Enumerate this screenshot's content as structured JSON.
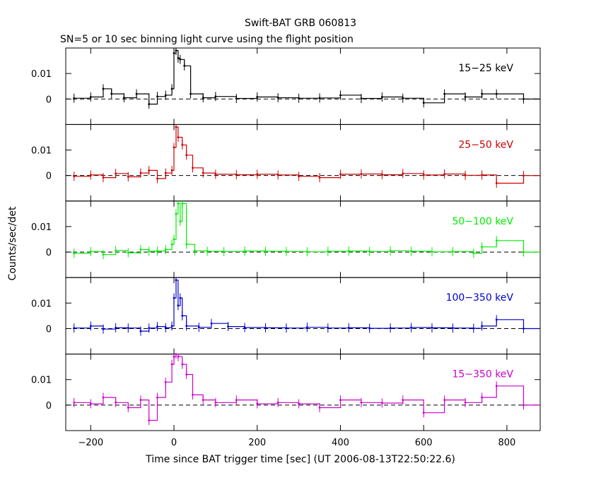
{
  "chart_data": {
    "type": "line",
    "title": "Swift-BAT GRB 060813",
    "subtitle": "SN=5 or 10 sec binning light curve using the flight position",
    "xlabel": "Time since BAT trigger time [sec] (UT 2006-08-13T22:50:22.6)",
    "ylabel": "Counts/sec/det",
    "xlim": [
      -260,
      880
    ],
    "x_ticks": [
      -200,
      0,
      200,
      400,
      600,
      800
    ],
    "x_tick_labels": [
      "−200",
      "0",
      "200",
      "400",
      "600",
      "800"
    ],
    "ylim": [
      -0.01,
      0.02
    ],
    "y_ticks": [
      0,
      0.01
    ],
    "y_tick_labels": [
      "0",
      "0.01"
    ],
    "zero_line": "dashed",
    "panels": [
      {
        "name": "15−25 keV",
        "color": "#000000",
        "series": [
          {
            "x": -240,
            "y": 0.0003
          },
          {
            "x": -200,
            "y": 0.0008
          },
          {
            "x": -170,
            "y": 0.004
          },
          {
            "x": -150,
            "y": 0.002
          },
          {
            "x": -120,
            "y": 0.0005
          },
          {
            "x": -90,
            "y": 0.002
          },
          {
            "x": -60,
            "y": -0.002
          },
          {
            "x": -40,
            "y": 0.001
          },
          {
            "x": -20,
            "y": 0.0015
          },
          {
            "x": -5,
            "y": 0.004
          },
          {
            "x": 0,
            "y": 0.018
          },
          {
            "x": 5,
            "y": 0.019
          },
          {
            "x": 10,
            "y": 0.016
          },
          {
            "x": 15,
            "y": 0.0155
          },
          {
            "x": 25,
            "y": 0.013
          },
          {
            "x": 40,
            "y": 0.002
          },
          {
            "x": 70,
            "y": 0.0005
          },
          {
            "x": 100,
            "y": 0.001
          },
          {
            "x": 150,
            "y": 0.0002
          },
          {
            "x": 200,
            "y": 0.0008
          },
          {
            "x": 250,
            "y": 0.0005
          },
          {
            "x": 300,
            "y": 0.0003
          },
          {
            "x": 350,
            "y": 0.0004
          },
          {
            "x": 400,
            "y": 0.0015
          },
          {
            "x": 450,
            "y": 0.0002
          },
          {
            "x": 500,
            "y": 0.0008
          },
          {
            "x": 550,
            "y": 0.0003
          },
          {
            "x": 600,
            "y": -0.0015
          },
          {
            "x": 650,
            "y": 0.002
          },
          {
            "x": 700,
            "y": 0.0008
          },
          {
            "x": 740,
            "y": 0.002
          },
          {
            "x": 775,
            "y": 0.002
          },
          {
            "x": 840,
            "y": 0.0
          }
        ]
      },
      {
        "name": "25−50 keV",
        "color": "#cc0000",
        "series": [
          {
            "x": -240,
            "y": -0.0003
          },
          {
            "x": -200,
            "y": 0.0002
          },
          {
            "x": -170,
            "y": -0.0008
          },
          {
            "x": -140,
            "y": 0.0008
          },
          {
            "x": -110,
            "y": -0.0005
          },
          {
            "x": -80,
            "y": 0.001
          },
          {
            "x": -60,
            "y": 0.002
          },
          {
            "x": -40,
            "y": -0.0012
          },
          {
            "x": -20,
            "y": 0.001
          },
          {
            "x": -5,
            "y": 0.002
          },
          {
            "x": 0,
            "y": 0.011
          },
          {
            "x": 5,
            "y": 0.019
          },
          {
            "x": 10,
            "y": 0.015
          },
          {
            "x": 20,
            "y": 0.012
          },
          {
            "x": 30,
            "y": 0.008
          },
          {
            "x": 45,
            "y": 0.003
          },
          {
            "x": 70,
            "y": 0.001
          },
          {
            "x": 100,
            "y": 0.0005
          },
          {
            "x": 150,
            "y": 0.0003
          },
          {
            "x": 200,
            "y": 0.0005
          },
          {
            "x": 250,
            "y": 0.0002
          },
          {
            "x": 300,
            "y": -0.0003
          },
          {
            "x": 350,
            "y": -0.0008
          },
          {
            "x": 400,
            "y": 0.0005
          },
          {
            "x": 450,
            "y": 0.0006
          },
          {
            "x": 500,
            "y": 0.0003
          },
          {
            "x": 550,
            "y": 0.0008
          },
          {
            "x": 600,
            "y": 0.0002
          },
          {
            "x": 650,
            "y": 0.0006
          },
          {
            "x": 700,
            "y": 0.0001
          },
          {
            "x": 740,
            "y": 0.0002
          },
          {
            "x": 775,
            "y": -0.003
          },
          {
            "x": 840,
            "y": 0.0
          }
        ]
      },
      {
        "name": "50−100 keV",
        "color": "#00ee00",
        "series": [
          {
            "x": -240,
            "y": -0.0005
          },
          {
            "x": -200,
            "y": 0.0002
          },
          {
            "x": -170,
            "y": -0.001
          },
          {
            "x": -140,
            "y": 0.0006
          },
          {
            "x": -110,
            "y": -0.0003
          },
          {
            "x": -80,
            "y": 0.001
          },
          {
            "x": -60,
            "y": 0.0003
          },
          {
            "x": -40,
            "y": 0.0004
          },
          {
            "x": -20,
            "y": 0.001
          },
          {
            "x": -5,
            "y": 0.003
          },
          {
            "x": 0,
            "y": 0.005
          },
          {
            "x": 5,
            "y": 0.015
          },
          {
            "x": 10,
            "y": 0.019
          },
          {
            "x": 15,
            "y": 0.012
          },
          {
            "x": 20,
            "y": 0.019
          },
          {
            "x": 30,
            "y": 0.003
          },
          {
            "x": 50,
            "y": 0.0005
          },
          {
            "x": 80,
            "y": 0.0003
          },
          {
            "x": 120,
            "y": 0.0002
          },
          {
            "x": 170,
            "y": 0.0004
          },
          {
            "x": 220,
            "y": 0.0003
          },
          {
            "x": 270,
            "y": 0.0002
          },
          {
            "x": 320,
            "y": 0.0001
          },
          {
            "x": 370,
            "y": 0.0003
          },
          {
            "x": 420,
            "y": 0.0004
          },
          {
            "x": 470,
            "y": 0.0002
          },
          {
            "x": 520,
            "y": 0.0005
          },
          {
            "x": 570,
            "y": 0.0003
          },
          {
            "x": 620,
            "y": 0.0001
          },
          {
            "x": 670,
            "y": 0.0002
          },
          {
            "x": 720,
            "y": -0.0005
          },
          {
            "x": 740,
            "y": 0.002
          },
          {
            "x": 775,
            "y": 0.0045
          },
          {
            "x": 840,
            "y": 0.0
          }
        ]
      },
      {
        "name": "100−350 keV",
        "color": "#0000cc",
        "series": [
          {
            "x": -240,
            "y": 0.0002
          },
          {
            "x": -200,
            "y": 0.001
          },
          {
            "x": -170,
            "y": -0.0002
          },
          {
            "x": -140,
            "y": 0.0003
          },
          {
            "x": -110,
            "y": 0.0002
          },
          {
            "x": -80,
            "y": -0.001
          },
          {
            "x": -60,
            "y": 0.0002
          },
          {
            "x": -40,
            "y": 0.0008
          },
          {
            "x": -20,
            "y": 0.0003
          },
          {
            "x": -5,
            "y": 0.001
          },
          {
            "x": 0,
            "y": 0.012
          },
          {
            "x": 5,
            "y": 0.019
          },
          {
            "x": 10,
            "y": 0.009
          },
          {
            "x": 15,
            "y": 0.012
          },
          {
            "x": 20,
            "y": 0.005
          },
          {
            "x": 30,
            "y": 0.001
          },
          {
            "x": 60,
            "y": 0.0005
          },
          {
            "x": 90,
            "y": 0.002
          },
          {
            "x": 130,
            "y": 0.0008
          },
          {
            "x": 170,
            "y": 0.0004
          },
          {
            "x": 220,
            "y": 0.0003
          },
          {
            "x": 270,
            "y": 0.0002
          },
          {
            "x": 320,
            "y": 0.0005
          },
          {
            "x": 370,
            "y": 0.0002
          },
          {
            "x": 420,
            "y": 0.0003
          },
          {
            "x": 470,
            "y": 0.0001
          },
          {
            "x": 520,
            "y": 0.0002
          },
          {
            "x": 570,
            "y": 0.0004
          },
          {
            "x": 620,
            "y": 0.0003
          },
          {
            "x": 670,
            "y": 0.0002
          },
          {
            "x": 720,
            "y": 0.0001
          },
          {
            "x": 740,
            "y": 0.001
          },
          {
            "x": 775,
            "y": 0.0035
          },
          {
            "x": 840,
            "y": 0.0
          }
        ]
      },
      {
        "name": "15−350 keV",
        "color": "#cc00cc",
        "series": [
          {
            "x": -240,
            "y": 0.001
          },
          {
            "x": -200,
            "y": 0.0005
          },
          {
            "x": -170,
            "y": 0.003
          },
          {
            "x": -140,
            "y": 0.001
          },
          {
            "x": -110,
            "y": -0.001
          },
          {
            "x": -80,
            "y": 0.002
          },
          {
            "x": -60,
            "y": -0.006
          },
          {
            "x": -40,
            "y": 0.003
          },
          {
            "x": -20,
            "y": 0.009
          },
          {
            "x": -5,
            "y": 0.016
          },
          {
            "x": 0,
            "y": 0.019
          },
          {
            "x": 5,
            "y": 0.02
          },
          {
            "x": 10,
            "y": 0.019
          },
          {
            "x": 20,
            "y": 0.016
          },
          {
            "x": 30,
            "y": 0.012
          },
          {
            "x": 45,
            "y": 0.004
          },
          {
            "x": 70,
            "y": 0.002
          },
          {
            "x": 100,
            "y": 0.001
          },
          {
            "x": 150,
            "y": 0.002
          },
          {
            "x": 200,
            "y": 0.0005
          },
          {
            "x": 250,
            "y": 0.001
          },
          {
            "x": 300,
            "y": 0.0005
          },
          {
            "x": 350,
            "y": -0.001
          },
          {
            "x": 400,
            "y": 0.002
          },
          {
            "x": 450,
            "y": 0.001
          },
          {
            "x": 500,
            "y": 0.0008
          },
          {
            "x": 550,
            "y": 0.002
          },
          {
            "x": 600,
            "y": -0.003
          },
          {
            "x": 650,
            "y": 0.002
          },
          {
            "x": 700,
            "y": 0.001
          },
          {
            "x": 740,
            "y": 0.003
          },
          {
            "x": 775,
            "y": 0.0075
          },
          {
            "x": 840,
            "y": 0.0
          }
        ]
      }
    ]
  }
}
